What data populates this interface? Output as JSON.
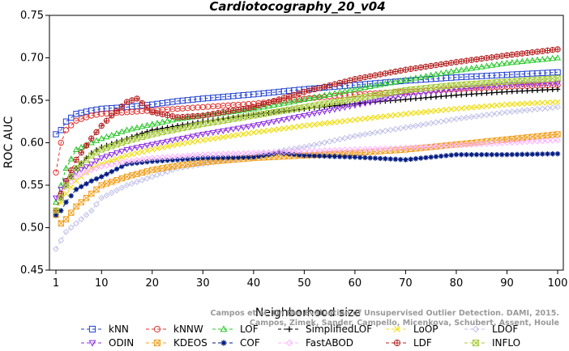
{
  "chart_data": {
    "type": "line",
    "title": "Cardiotocography_20_v04",
    "xlabel": "Neighborhood size",
    "ylabel": "ROC AUC",
    "xlim": [
      0,
      100
    ],
    "ylim": [
      0.45,
      0.75
    ],
    "x_ticks": [
      1,
      10,
      20,
      30,
      40,
      50,
      60,
      70,
      80,
      90,
      100
    ],
    "y_ticks": [
      0.45,
      0.5,
      0.55,
      0.6,
      0.65,
      0.7,
      0.75
    ],
    "x_tick_labels": [
      "1",
      "10",
      "20",
      "30",
      "40",
      "50",
      "60",
      "70",
      "80",
      "90",
      "100"
    ],
    "y_tick_labels": [
      "0.45",
      "0.50",
      "0.55",
      "0.60",
      "0.65",
      "0.70",
      "0.75"
    ],
    "grid": false,
    "legend_position": "bottom",
    "watermark_lines": [
      "Campos et al. On the Evaluation of Unsupervised Outlier Detection. DAMI, 2015.",
      "Campos, Zimek, Sander, Campello, Micenkova, Schubert, Assent, Houle"
    ],
    "series": [
      {
        "name": "kNN",
        "color": "#1f3fd0",
        "marker": "square",
        "dash": "4,3",
        "points": [
          [
            1,
            0.61
          ],
          [
            2,
            0.615
          ],
          [
            3,
            0.625
          ],
          [
            5,
            0.634
          ],
          [
            8,
            0.638
          ],
          [
            10,
            0.64
          ],
          [
            15,
            0.642
          ],
          [
            20,
            0.645
          ],
          [
            25,
            0.649
          ],
          [
            30,
            0.652
          ],
          [
            40,
            0.657
          ],
          [
            50,
            0.663
          ],
          [
            60,
            0.668
          ],
          [
            70,
            0.673
          ],
          [
            80,
            0.677
          ],
          [
            90,
            0.68
          ],
          [
            100,
            0.683
          ]
        ]
      },
      {
        "name": "kNNW",
        "color": "#e0302a",
        "marker": "circle",
        "dash": "4,3",
        "points": [
          [
            1,
            0.565
          ],
          [
            2,
            0.6
          ],
          [
            3,
            0.615
          ],
          [
            5,
            0.626
          ],
          [
            8,
            0.632
          ],
          [
            10,
            0.634
          ],
          [
            15,
            0.636
          ],
          [
            20,
            0.638
          ],
          [
            25,
            0.64
          ],
          [
            30,
            0.642
          ],
          [
            40,
            0.646
          ],
          [
            50,
            0.652
          ],
          [
            60,
            0.657
          ],
          [
            70,
            0.66
          ],
          [
            80,
            0.663
          ],
          [
            90,
            0.666
          ],
          [
            100,
            0.668
          ]
        ]
      },
      {
        "name": "LOF",
        "color": "#26c626",
        "marker": "triangle",
        "dash": "4,3",
        "points": [
          [
            1,
            0.53
          ],
          [
            2,
            0.55
          ],
          [
            3,
            0.57
          ],
          [
            5,
            0.592
          ],
          [
            8,
            0.6
          ],
          [
            10,
            0.605
          ],
          [
            15,
            0.615
          ],
          [
            20,
            0.622
          ],
          [
            25,
            0.628
          ],
          [
            30,
            0.632
          ],
          [
            40,
            0.64
          ],
          [
            50,
            0.651
          ],
          [
            60,
            0.663
          ],
          [
            70,
            0.674
          ],
          [
            80,
            0.685
          ],
          [
            90,
            0.694
          ],
          [
            100,
            0.7
          ]
        ]
      },
      {
        "name": "SimplifiedLOF",
        "color": "#000000",
        "marker": "plus",
        "dash": "4,3",
        "points": [
          [
            1,
            0.52
          ],
          [
            2,
            0.535
          ],
          [
            3,
            0.55
          ],
          [
            5,
            0.57
          ],
          [
            8,
            0.588
          ],
          [
            10,
            0.595
          ],
          [
            15,
            0.605
          ],
          [
            20,
            0.615
          ],
          [
            25,
            0.62
          ],
          [
            30,
            0.625
          ],
          [
            40,
            0.633
          ],
          [
            50,
            0.64
          ],
          [
            60,
            0.646
          ],
          [
            70,
            0.651
          ],
          [
            80,
            0.656
          ],
          [
            90,
            0.66
          ],
          [
            100,
            0.663
          ]
        ]
      },
      {
        "name": "LoOP",
        "color": "#f0e020",
        "marker": "x",
        "dash": "4,3",
        "points": [
          [
            1,
            0.52
          ],
          [
            2,
            0.53
          ],
          [
            3,
            0.54
          ],
          [
            5,
            0.555
          ],
          [
            8,
            0.57
          ],
          [
            10,
            0.575
          ],
          [
            15,
            0.585
          ],
          [
            20,
            0.592
          ],
          [
            25,
            0.598
          ],
          [
            30,
            0.603
          ],
          [
            40,
            0.612
          ],
          [
            50,
            0.62
          ],
          [
            60,
            0.627
          ],
          [
            70,
            0.634
          ],
          [
            80,
            0.64
          ],
          [
            90,
            0.645
          ],
          [
            100,
            0.648
          ]
        ]
      },
      {
        "name": "LDOF",
        "color": "#c0c0e8",
        "marker": "diamond",
        "dash": "4,3",
        "points": [
          [
            1,
            0.475
          ],
          [
            2,
            0.485
          ],
          [
            3,
            0.495
          ],
          [
            5,
            0.505
          ],
          [
            8,
            0.52
          ],
          [
            10,
            0.535
          ],
          [
            15,
            0.55
          ],
          [
            20,
            0.56
          ],
          [
            25,
            0.57
          ],
          [
            30,
            0.575
          ],
          [
            40,
            0.585
          ],
          [
            50,
            0.595
          ],
          [
            60,
            0.608
          ],
          [
            70,
            0.618
          ],
          [
            80,
            0.628
          ],
          [
            90,
            0.636
          ],
          [
            100,
            0.642
          ]
        ]
      },
      {
        "name": "ODIN",
        "color": "#8a2be2",
        "marker": "triangle-down",
        "dash": "4,3",
        "points": [
          [
            1,
            0.535
          ],
          [
            2,
            0.545
          ],
          [
            3,
            0.555
          ],
          [
            5,
            0.565
          ],
          [
            8,
            0.575
          ],
          [
            10,
            0.582
          ],
          [
            15,
            0.592
          ],
          [
            20,
            0.598
          ],
          [
            25,
            0.604
          ],
          [
            30,
            0.61
          ],
          [
            40,
            0.62
          ],
          [
            50,
            0.632
          ],
          [
            60,
            0.644
          ],
          [
            70,
            0.656
          ],
          [
            80,
            0.663
          ],
          [
            90,
            0.668
          ],
          [
            100,
            0.67
          ]
        ]
      },
      {
        "name": "KDEOS",
        "color": "#f0a020",
        "marker": "square-x",
        "dash": "4,3",
        "points": [
          [
            1,
            0.515
          ],
          [
            2,
            0.505
          ],
          [
            3,
            0.51
          ],
          [
            5,
            0.525
          ],
          [
            8,
            0.54
          ],
          [
            10,
            0.55
          ],
          [
            15,
            0.56
          ],
          [
            20,
            0.568
          ],
          [
            25,
            0.573
          ],
          [
            30,
            0.577
          ],
          [
            40,
            0.582
          ],
          [
            50,
            0.585
          ],
          [
            60,
            0.588
          ],
          [
            70,
            0.592
          ],
          [
            80,
            0.598
          ],
          [
            90,
            0.604
          ],
          [
            100,
            0.61
          ]
        ]
      },
      {
        "name": "COF",
        "color": "#001a80",
        "marker": "star",
        "dash": "4,3",
        "points": [
          [
            1,
            0.515
          ],
          [
            2,
            0.52
          ],
          [
            3,
            0.53
          ],
          [
            5,
            0.545
          ],
          [
            8,
            0.555
          ],
          [
            10,
            0.56
          ],
          [
            15,
            0.575
          ],
          [
            20,
            0.578
          ],
          [
            25,
            0.58
          ],
          [
            30,
            0.582
          ],
          [
            40,
            0.583
          ],
          [
            45,
            0.588
          ],
          [
            50,
            0.585
          ],
          [
            60,
            0.583
          ],
          [
            70,
            0.58
          ],
          [
            80,
            0.586
          ],
          [
            90,
            0.586
          ],
          [
            100,
            0.587
          ]
        ]
      },
      {
        "name": "FastABOD",
        "color": "#ffb0ff",
        "marker": "diamond",
        "dash": "4,3",
        "points": [
          [
            1,
            0.52
          ],
          [
            2,
            0.535
          ],
          [
            3,
            0.548
          ],
          [
            5,
            0.56
          ],
          [
            8,
            0.568
          ],
          [
            10,
            0.572
          ],
          [
            15,
            0.578
          ],
          [
            20,
            0.582
          ],
          [
            25,
            0.584
          ],
          [
            30,
            0.586
          ],
          [
            40,
            0.588
          ],
          [
            50,
            0.59
          ],
          [
            60,
            0.592
          ],
          [
            70,
            0.594
          ],
          [
            80,
            0.597
          ],
          [
            90,
            0.6
          ],
          [
            100,
            0.603
          ]
        ]
      },
      {
        "name": "LDF",
        "color": "#b52020",
        "marker": "circle-plus",
        "dash": "4,3",
        "points": [
          [
            1,
            0.52
          ],
          [
            2,
            0.54
          ],
          [
            3,
            0.555
          ],
          [
            5,
            0.58
          ],
          [
            8,
            0.605
          ],
          [
            10,
            0.62
          ],
          [
            12,
            0.632
          ],
          [
            15,
            0.648
          ],
          [
            17,
            0.652
          ],
          [
            20,
            0.636
          ],
          [
            25,
            0.63
          ],
          [
            30,
            0.632
          ],
          [
            40,
            0.642
          ],
          [
            50,
            0.66
          ],
          [
            60,
            0.675
          ],
          [
            70,
            0.686
          ],
          [
            80,
            0.695
          ],
          [
            90,
            0.703
          ],
          [
            100,
            0.71
          ]
        ]
      },
      {
        "name": "INFLO",
        "color": "#a6c93a",
        "marker": "square-x",
        "dash": "4,3",
        "points": [
          [
            1,
            0.52
          ],
          [
            2,
            0.535
          ],
          [
            3,
            0.55
          ],
          [
            5,
            0.57
          ],
          [
            8,
            0.585
          ],
          [
            10,
            0.592
          ],
          [
            15,
            0.602
          ],
          [
            20,
            0.61
          ],
          [
            25,
            0.616
          ],
          [
            30,
            0.622
          ],
          [
            40,
            0.632
          ],
          [
            50,
            0.642
          ],
          [
            60,
            0.652
          ],
          [
            70,
            0.662
          ],
          [
            80,
            0.668
          ],
          [
            90,
            0.672
          ],
          [
            100,
            0.676
          ]
        ]
      }
    ]
  }
}
